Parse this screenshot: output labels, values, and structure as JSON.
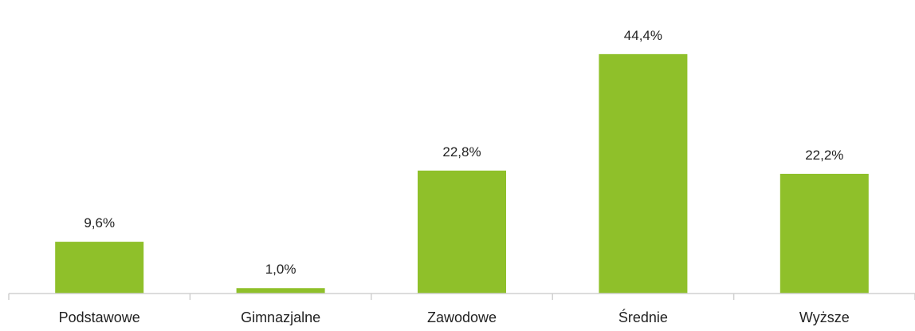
{
  "chart_data": {
    "type": "bar",
    "categories": [
      "Podstawowe",
      "Gimnazjalne",
      "Zawodowe",
      "Średnie",
      "Wyższe"
    ],
    "values": [
      9.6,
      1.0,
      22.8,
      44.4,
      22.2
    ],
    "data_labels": [
      "9,6%",
      "1,0%",
      "22,8%",
      "44,4%",
      "22,2%"
    ],
    "ylim": [
      0,
      50
    ],
    "bar_color": "#8fc02a",
    "grid": false,
    "legend": "none"
  }
}
